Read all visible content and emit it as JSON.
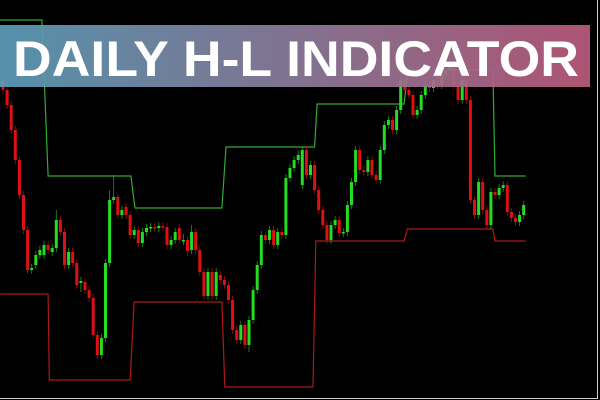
{
  "banner": {
    "title": "DAILY H-L INDICATOR",
    "gradient_start": "#5b9cb8",
    "gradient_end": "#bb5a7c",
    "text_color": "#ffffff"
  },
  "chart_data": {
    "type": "candlestick",
    "title": "DAILY H-L INDICATOR",
    "xlabel": "",
    "ylabel": "",
    "grid": false,
    "price_scale_printed": false,
    "ylim": [
      0,
      400
    ],
    "colors": {
      "background": "#000000",
      "bull_candle": "#22dd22",
      "bear_candle": "#dd1111",
      "daily_high_line": "#33aa33",
      "daily_low_line": "#aa1a1a"
    },
    "candles_ohlc": [
      [
        320,
        324,
        306,
        310
      ],
      [
        310,
        314,
        291,
        295
      ],
      [
        295,
        299,
        266,
        270
      ],
      [
        270,
        274,
        236,
        240
      ],
      [
        240,
        244,
        201,
        205
      ],
      [
        205,
        209,
        166,
        170
      ],
      [
        170,
        174,
        126,
        130
      ],
      [
        130,
        136,
        126,
        132
      ],
      [
        135,
        149,
        131,
        145
      ],
      [
        145,
        154,
        141,
        150
      ],
      [
        145,
        159,
        141,
        155
      ],
      [
        155,
        159,
        146,
        150
      ],
      [
        148,
        156,
        144,
        152
      ],
      [
        152,
        190,
        148,
        180
      ],
      [
        180,
        184,
        164,
        168
      ],
      [
        168,
        172,
        131,
        135
      ],
      [
        135,
        152,
        131,
        148
      ],
      [
        148,
        152,
        133,
        137
      ],
      [
        137,
        141,
        111,
        115
      ],
      [
        117,
        123,
        108,
        119
      ],
      [
        118,
        122,
        106,
        110
      ],
      [
        110,
        114,
        98,
        102
      ],
      [
        102,
        106,
        61,
        65
      ],
      [
        65,
        69,
        41,
        45
      ],
      [
        45,
        66,
        41,
        62
      ],
      [
        62,
        141,
        58,
        137
      ],
      [
        137,
        210,
        133,
        200
      ],
      [
        200,
        225,
        196,
        203
      ],
      [
        203,
        207,
        181,
        185
      ],
      [
        185,
        194,
        181,
        190
      ],
      [
        193,
        197,
        181,
        185
      ],
      [
        185,
        189,
        161,
        165
      ],
      [
        165,
        174,
        161,
        170
      ],
      [
        170,
        174,
        153,
        157
      ],
      [
        157,
        172,
        153,
        168
      ],
      [
        168,
        176,
        164,
        172
      ],
      [
        172,
        177,
        168,
        173
      ],
      [
        173,
        177,
        168,
        172
      ],
      [
        172,
        178,
        168,
        174
      ],
      [
        174,
        178,
        169,
        173
      ],
      [
        173,
        177,
        151,
        155
      ],
      [
        155,
        164,
        151,
        160
      ],
      [
        160,
        172,
        156,
        168
      ],
      [
        172,
        176,
        156,
        160
      ],
      [
        160,
        166,
        155,
        160
      ],
      [
        160,
        164,
        145,
        149
      ],
      [
        150,
        175,
        146,
        168
      ],
      [
        168,
        172,
        146,
        150
      ],
      [
        150,
        154,
        124,
        128
      ],
      [
        128,
        132,
        100,
        104
      ],
      [
        104,
        132,
        100,
        128
      ],
      [
        128,
        132,
        100,
        104
      ],
      [
        104,
        132,
        100,
        128
      ],
      [
        125,
        129,
        116,
        120
      ],
      [
        120,
        124,
        111,
        115
      ],
      [
        115,
        119,
        96,
        100
      ],
      [
        100,
        104,
        66,
        70
      ],
      [
        70,
        74,
        56,
        60
      ],
      [
        60,
        79,
        56,
        75
      ],
      [
        75,
        79,
        51,
        55
      ],
      [
        55,
        84,
        48,
        80
      ],
      [
        80,
        114,
        76,
        110
      ],
      [
        110,
        139,
        106,
        135
      ],
      [
        135,
        169,
        131,
        165
      ],
      [
        165,
        169,
        156,
        160
      ],
      [
        160,
        174,
        156,
        170
      ],
      [
        170,
        174,
        151,
        155
      ],
      [
        155,
        172,
        151,
        168
      ],
      [
        168,
        172,
        161,
        165
      ],
      [
        165,
        226,
        161,
        222
      ],
      [
        222,
        236,
        218,
        232
      ],
      [
        232,
        244,
        228,
        240
      ],
      [
        240,
        249,
        236,
        245
      ],
      [
        215,
        254,
        211,
        250
      ],
      [
        250,
        254,
        221,
        225
      ],
      [
        225,
        239,
        221,
        235
      ],
      [
        235,
        239,
        206,
        210
      ],
      [
        210,
        214,
        186,
        190
      ],
      [
        190,
        194,
        171,
        175
      ],
      [
        175,
        179,
        156,
        160
      ],
      [
        160,
        179,
        156,
        175
      ],
      [
        175,
        184,
        171,
        180
      ],
      [
        180,
        184,
        163,
        167
      ],
      [
        167,
        172,
        163,
        168
      ],
      [
        168,
        199,
        164,
        195
      ],
      [
        195,
        222,
        191,
        218
      ],
      [
        218,
        254,
        214,
        250
      ],
      [
        250,
        254,
        226,
        230
      ],
      [
        230,
        234,
        224,
        228
      ],
      [
        228,
        244,
        224,
        240
      ],
      [
        240,
        244,
        221,
        225
      ],
      [
        225,
        229,
        216,
        220
      ],
      [
        220,
        254,
        216,
        250
      ],
      [
        250,
        279,
        246,
        275
      ],
      [
        275,
        284,
        271,
        280
      ],
      [
        280,
        284,
        266,
        270
      ],
      [
        270,
        294,
        266,
        290
      ],
      [
        290,
        324,
        286,
        320
      ],
      [
        320,
        324,
        306,
        310
      ],
      [
        310,
        314,
        301,
        305
      ],
      [
        305,
        309,
        281,
        285
      ],
      [
        285,
        294,
        281,
        290
      ],
      [
        290,
        309,
        286,
        305
      ],
      [
        305,
        319,
        301,
        315
      ],
      [
        315,
        319,
        308,
        312
      ],
      [
        312,
        324,
        308,
        320
      ],
      [
        320,
        324,
        311,
        315
      ],
      [
        315,
        329,
        311,
        325
      ],
      [
        325,
        334,
        321,
        330
      ],
      [
        330,
        339,
        326,
        335
      ],
      [
        335,
        339,
        311,
        315
      ],
      [
        315,
        319,
        296,
        300
      ],
      [
        300,
        324,
        296,
        320
      ],
      [
        320,
        324,
        296,
        300
      ],
      [
        300,
        304,
        196,
        200
      ],
      [
        200,
        204,
        181,
        185
      ],
      [
        185,
        222,
        181,
        218
      ],
      [
        218,
        222,
        186,
        190
      ],
      [
        190,
        194,
        171,
        175
      ],
      [
        175,
        212,
        171,
        208
      ],
      [
        208,
        212,
        201,
        205
      ],
      [
        205,
        216,
        201,
        212
      ],
      [
        212,
        219,
        208,
        215
      ],
      [
        215,
        219,
        184,
        188
      ],
      [
        188,
        192,
        178,
        182
      ],
      [
        182,
        186,
        174,
        178
      ],
      [
        178,
        189,
        174,
        185
      ],
      [
        185,
        199,
        181,
        195
      ]
    ],
    "daily_high": [
      [
        -0.7,
        380
      ],
      [
        9.5,
        380
      ],
      [
        11,
        224
      ],
      [
        31.2,
        224
      ],
      [
        32.2,
        192
      ],
      [
        53.4,
        192
      ],
      [
        54.4,
        253
      ],
      [
        76,
        253
      ],
      [
        76.6,
        296
      ],
      [
        97.8,
        296
      ],
      [
        98.8,
        330
      ],
      [
        119.5,
        330
      ],
      [
        120,
        224
      ],
      [
        127.5,
        224
      ]
    ],
    "daily_low": [
      [
        -0.7,
        106
      ],
      [
        11,
        106
      ],
      [
        11.3,
        20
      ],
      [
        31,
        20
      ],
      [
        32,
        98
      ],
      [
        53.4,
        98
      ],
      [
        54.1,
        13
      ],
      [
        75.6,
        13
      ],
      [
        76.3,
        159
      ],
      [
        97.8,
        159
      ],
      [
        98.6,
        171
      ],
      [
        119.5,
        171
      ],
      [
        120,
        159
      ],
      [
        127.5,
        159
      ]
    ]
  }
}
